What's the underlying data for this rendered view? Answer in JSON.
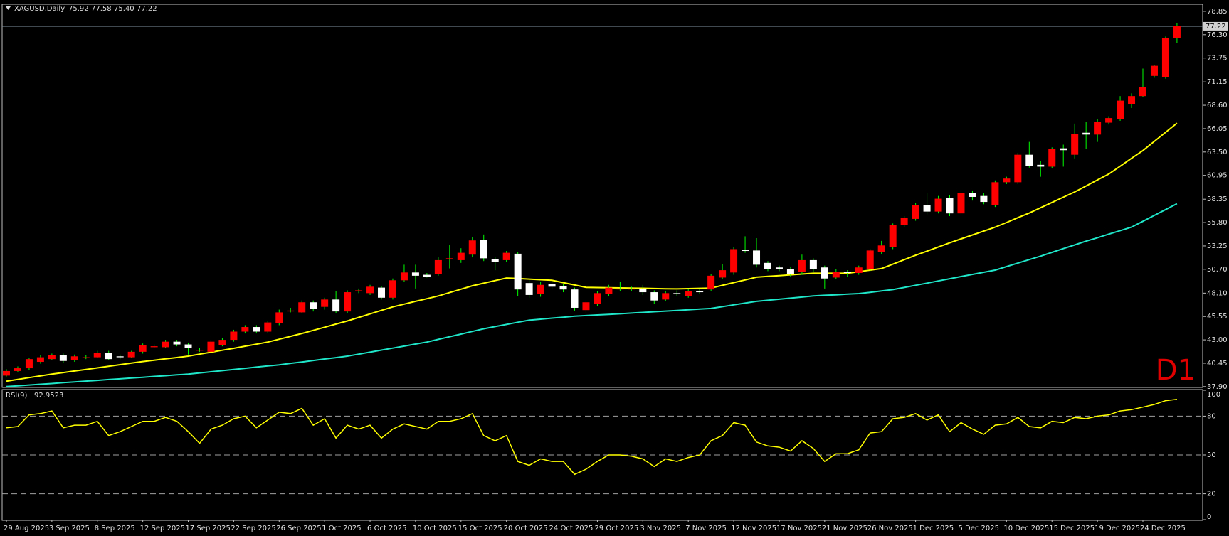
{
  "chart_data": {
    "type": "candlestick",
    "symbol": "XAGUSD,Daily",
    "header_values": [
      "75.92",
      "77.58",
      "75.40",
      "77.22"
    ],
    "timeframe_label": "D1",
    "categories": [
      "29 Aug 2025",
      null,
      null,
      null,
      "3 Sep 2025",
      null,
      null,
      null,
      "8 Sep 2025",
      null,
      null,
      null,
      "12 Sep 2025",
      null,
      null,
      null,
      "17 Sep 2025",
      null,
      null,
      null,
      "22 Sep 2025",
      null,
      null,
      null,
      "26 Sep 2025",
      null,
      null,
      null,
      "1 Oct 2025",
      null,
      null,
      null,
      "6 Oct 2025",
      null,
      null,
      null,
      "10 Oct 2025",
      null,
      null,
      null,
      "15 Oct 2025",
      null,
      null,
      null,
      "20 Oct 2025",
      null,
      null,
      null,
      "24 Oct 2025",
      null,
      null,
      null,
      "29 Oct 2025",
      null,
      null,
      null,
      "3 Nov 2025",
      null,
      null,
      null,
      "7 Nov 2025",
      null,
      null,
      null,
      "12 Nov 2025",
      null,
      null,
      null,
      "17 Nov 2025",
      null,
      null,
      null,
      "21 Nov 2025",
      null,
      null,
      null,
      "26 Nov 2025",
      null,
      null,
      null,
      "1 Dec 2025",
      null,
      null,
      null,
      "5 Dec 2025",
      null,
      null,
      null,
      "10 Dec 2025",
      null,
      null,
      null,
      "15 Dec 2025",
      null,
      null,
      null,
      "19 Dec 2025",
      null,
      null,
      null,
      "24 Dec 2025",
      null,
      null,
      null
    ],
    "open": [
      39.1,
      39.6,
      39.9,
      40.6,
      40.9,
      41.3,
      40.8,
      41.1,
      41.1,
      41.6,
      41.2,
      41.1,
      41.7,
      42.2,
      42.2,
      42.8,
      42.5,
      41.9,
      41.7,
      42.4,
      43.0,
      43.9,
      44.4,
      43.9,
      44.8,
      46.1,
      46.0,
      47.1,
      46.6,
      47.4,
      46.1,
      48.3,
      48.1,
      48.7,
      47.6,
      49.5,
      50.35,
      50.1,
      50.2,
      51.8,
      51.7,
      52.3,
      53.9,
      51.8,
      51.7,
      52.4,
      49.2,
      48.0,
      49.1,
      48.9,
      48.5,
      46.25,
      46.9,
      48.0,
      48.5,
      48.5,
      48.6,
      48.2,
      47.4,
      48.1,
      47.8,
      48.3,
      48.5,
      49.8,
      50.35,
      52.8,
      52.75,
      51.4,
      50.9,
      50.7,
      50.4,
      51.7,
      50.9,
      49.8,
      50.4,
      50.3,
      50.7,
      52.6,
      53.1,
      55.5,
      56.2,
      57.7,
      57.0,
      58.5,
      56.8,
      59.0,
      58.7,
      57.7,
      60.2,
      60.2,
      63.2,
      62.1,
      61.9,
      63.9,
      63.2,
      65.6,
      65.4,
      66.7,
      67.1,
      68.7,
      69.6,
      71.8,
      71.7,
      75.92
    ],
    "high": [
      39.8,
      40.1,
      41.0,
      41.3,
      41.5,
      41.5,
      41.4,
      41.3,
      41.8,
      41.8,
      41.4,
      41.8,
      42.6,
      42.5,
      43.0,
      43.0,
      42.7,
      42.1,
      43.0,
      43.2,
      44.1,
      44.6,
      44.6,
      45.1,
      46.3,
      46.5,
      47.3,
      47.3,
      47.6,
      48.3,
      48.4,
      48.6,
      49.0,
      48.9,
      49.7,
      51.2,
      51.2,
      50.3,
      52.0,
      53.4,
      53.0,
      54.2,
      54.5,
      52.0,
      52.7,
      52.6,
      49.5,
      49.3,
      49.4,
      49.1,
      48.7,
      47.3,
      48.3,
      49.0,
      49.3,
      48.8,
      49.0,
      48.4,
      48.3,
      48.4,
      48.6,
      48.6,
      50.2,
      51.3,
      53.1,
      54.3,
      54.1,
      51.6,
      51.1,
      51.0,
      52.3,
      51.9,
      51.1,
      50.7,
      50.6,
      51.1,
      52.9,
      53.8,
      55.7,
      56.5,
      57.9,
      59.0,
      58.7,
      58.8,
      59.2,
      59.3,
      59.0,
      60.4,
      60.8,
      63.4,
      64.6,
      62.5,
      64.0,
      64.3,
      66.6,
      66.8,
      67.1,
      67.4,
      69.6,
      69.9,
      72.6,
      73.0,
      76.1,
      77.58
    ],
    "low": [
      39.0,
      39.5,
      39.7,
      40.4,
      40.8,
      40.5,
      40.6,
      40.9,
      41.0,
      40.8,
      40.9,
      41.0,
      41.5,
      42.1,
      42.1,
      42.3,
      41.4,
      41.7,
      41.5,
      42.3,
      42.8,
      43.7,
      43.7,
      43.7,
      44.6,
      46.0,
      45.9,
      46.1,
      46.3,
      45.9,
      45.9,
      48.1,
      47.9,
      47.4,
      47.4,
      49.3,
      48.6,
      49.8,
      50.0,
      50.8,
      51.4,
      52.0,
      51.6,
      50.6,
      51.5,
      47.8,
      47.6,
      47.7,
      48.5,
      48.2,
      46.2,
      45.9,
      46.7,
      47.8,
      48.3,
      48.3,
      47.9,
      46.9,
      47.2,
      47.8,
      47.6,
      48.0,
      48.3,
      49.6,
      50.1,
      52.5,
      50.9,
      50.5,
      50.5,
      49.9,
      50.1,
      50.4,
      48.6,
      49.6,
      49.9,
      50.1,
      50.5,
      52.4,
      52.9,
      55.3,
      56.0,
      56.7,
      56.8,
      56.5,
      56.6,
      58.2,
      57.8,
      57.5,
      60.0,
      60.0,
      61.8,
      60.8,
      61.7,
      61.9,
      62.8,
      63.8,
      64.6,
      66.5,
      66.9,
      68.3,
      69.5,
      71.6,
      71.5,
      75.4
    ],
    "close": [
      39.6,
      39.9,
      40.9,
      41.1,
      41.3,
      40.7,
      41.2,
      41.1,
      41.6,
      40.9,
      41.1,
      41.7,
      42.4,
      42.3,
      42.8,
      42.5,
      42.1,
      41.9,
      42.8,
      43.0,
      43.9,
      44.4,
      43.9,
      44.9,
      46.0,
      46.2,
      47.1,
      46.4,
      47.4,
      46.1,
      48.2,
      48.4,
      48.8,
      47.6,
      49.5,
      50.35,
      50.0,
      49.9,
      51.7,
      51.9,
      52.5,
      53.85,
      51.9,
      51.5,
      52.5,
      48.5,
      47.9,
      49.0,
      48.8,
      48.5,
      46.5,
      47.1,
      48.1,
      48.7,
      48.6,
      48.6,
      48.2,
      47.3,
      48.1,
      48.0,
      48.3,
      48.2,
      50.0,
      50.6,
      52.9,
      52.7,
      51.2,
      50.7,
      50.7,
      50.2,
      51.7,
      50.7,
      49.7,
      50.4,
      50.3,
      50.9,
      52.75,
      53.3,
      55.5,
      56.3,
      57.7,
      57.0,
      58.4,
      56.8,
      59.0,
      58.6,
      58.05,
      60.2,
      60.6,
      63.2,
      62.0,
      61.9,
      63.8,
      63.7,
      65.5,
      65.4,
      66.8,
      67.2,
      69.1,
      69.6,
      70.6,
      72.9,
      75.9,
      77.22
    ],
    "up_color": "#ff0000",
    "down_color": "#ffffff",
    "wick_color": "#00ff00",
    "overlays": [
      {
        "color": "#ffff00",
        "values": [
          38.49,
          38.68,
          38.88,
          39.07,
          39.26,
          39.43,
          39.6,
          39.77,
          39.94,
          40.11,
          40.29,
          40.46,
          40.63,
          40.78,
          40.93,
          41.07,
          41.22,
          41.44,
          41.65,
          41.87,
          42.08,
          42.31,
          42.53,
          42.76,
          43.07,
          43.39,
          43.7,
          44.04,
          44.38,
          44.72,
          45.06,
          45.45,
          45.83,
          46.22,
          46.6,
          46.9,
          47.2,
          47.49,
          47.79,
          48.16,
          48.53,
          48.9,
          49.18,
          49.47,
          49.75,
          49.69,
          49.63,
          49.56,
          49.5,
          49.24,
          48.99,
          48.73,
          48.71,
          48.69,
          48.67,
          48.65,
          48.63,
          48.6,
          48.58,
          48.56,
          48.59,
          48.62,
          48.65,
          48.95,
          49.25,
          49.54,
          49.84,
          49.93,
          50.01,
          50.1,
          50.18,
          50.27,
          50.27,
          50.27,
          50.27,
          50.44,
          50.61,
          50.78,
          51.26,
          51.75,
          52.23,
          52.68,
          53.14,
          53.59,
          54.02,
          54.45,
          54.87,
          55.3,
          55.81,
          56.33,
          56.84,
          57.42,
          57.99,
          58.57,
          59.14,
          59.79,
          60.45,
          61.1,
          61.95,
          62.81,
          63.66,
          64.66,
          65.65,
          66.65
        ]
      },
      {
        "color": "#1fe6c8",
        "values": [
          37.9,
          37.99,
          38.07,
          38.16,
          38.24,
          38.33,
          38.41,
          38.5,
          38.58,
          38.67,
          38.75,
          38.84,
          38.92,
          39.01,
          39.09,
          39.18,
          39.26,
          39.39,
          39.52,
          39.64,
          39.77,
          39.9,
          40.03,
          40.15,
          40.28,
          40.44,
          40.59,
          40.75,
          40.91,
          41.06,
          41.22,
          41.44,
          41.66,
          41.88,
          42.1,
          42.32,
          42.54,
          42.76,
          43.05,
          43.34,
          43.63,
          43.92,
          44.21,
          44.45,
          44.68,
          44.92,
          45.15,
          45.26,
          45.37,
          45.47,
          45.58,
          45.65,
          45.72,
          45.78,
          45.85,
          45.92,
          45.99,
          46.07,
          46.14,
          46.21,
          46.29,
          46.36,
          46.43,
          46.62,
          46.82,
          47.01,
          47.2,
          47.32,
          47.44,
          47.55,
          47.67,
          47.79,
          47.86,
          47.92,
          47.99,
          48.05,
          48.19,
          48.34,
          48.48,
          48.72,
          48.96,
          49.19,
          49.43,
          49.67,
          49.91,
          50.14,
          50.38,
          50.61,
          51.0,
          51.38,
          51.76,
          52.14,
          52.55,
          52.96,
          53.36,
          53.77,
          54.15,
          54.54,
          54.92,
          55.3,
          55.94,
          56.58,
          57.22,
          57.86
        ]
      }
    ],
    "ylim": [
      37.81,
      79.62
    ],
    "yticks": [
      {
        "value": 37.9,
        "label": "37.90"
      },
      {
        "value": 40.45,
        "label": "40.45"
      },
      {
        "value": 43,
        "label": "43.00"
      },
      {
        "value": 45.55,
        "label": "45.55"
      },
      {
        "value": 48.1,
        "label": "48.10"
      },
      {
        "value": 50.7,
        "label": "50.70"
      },
      {
        "value": 53.25,
        "label": "53.25"
      },
      {
        "value": 55.8,
        "label": "55.80"
      },
      {
        "value": 58.35,
        "label": "58.35"
      },
      {
        "value": 60.95,
        "label": "60.95"
      },
      {
        "value": 63.5,
        "label": "63.50"
      },
      {
        "value": 66.05,
        "label": "66.05"
      },
      {
        "value": 68.6,
        "label": "68.60"
      },
      {
        "value": 71.15,
        "label": "71.15"
      },
      {
        "value": 73.75,
        "label": "73.75"
      },
      {
        "value": 76.3,
        "label": "76.30"
      },
      {
        "value": 78.85,
        "label": "78.85"
      }
    ],
    "rsi": {
      "title": "RSI(9)",
      "color": "#ffff00",
      "ylim": [
        0,
        100
      ],
      "yticks": [
        0,
        20,
        50,
        80,
        100
      ],
      "levels": [
        20,
        50,
        80
      ],
      "values": [
        71,
        72,
        81,
        82,
        84,
        71,
        73,
        73,
        76,
        65,
        68,
        72,
        76,
        76,
        79,
        76,
        68,
        59,
        70,
        73,
        78,
        80,
        71,
        77,
        83,
        82,
        86,
        73,
        78,
        63,
        73,
        70,
        73,
        63,
        70,
        74,
        72,
        70,
        76,
        76,
        78,
        82,
        65,
        61,
        65,
        45,
        42,
        47,
        45,
        45,
        35,
        39,
        45,
        50,
        50,
        49,
        47,
        41,
        47,
        45,
        48,
        50,
        61,
        65,
        75,
        73,
        60,
        57,
        56,
        53,
        61,
        55,
        45,
        51,
        51,
        54,
        67,
        68,
        78,
        79,
        82,
        77,
        81,
        68,
        75,
        70,
        66,
        73,
        74,
        79,
        72,
        71,
        76,
        75,
        79,
        78,
        80,
        81,
        84,
        85,
        87,
        89,
        92,
        92.9523
      ]
    }
  }
}
